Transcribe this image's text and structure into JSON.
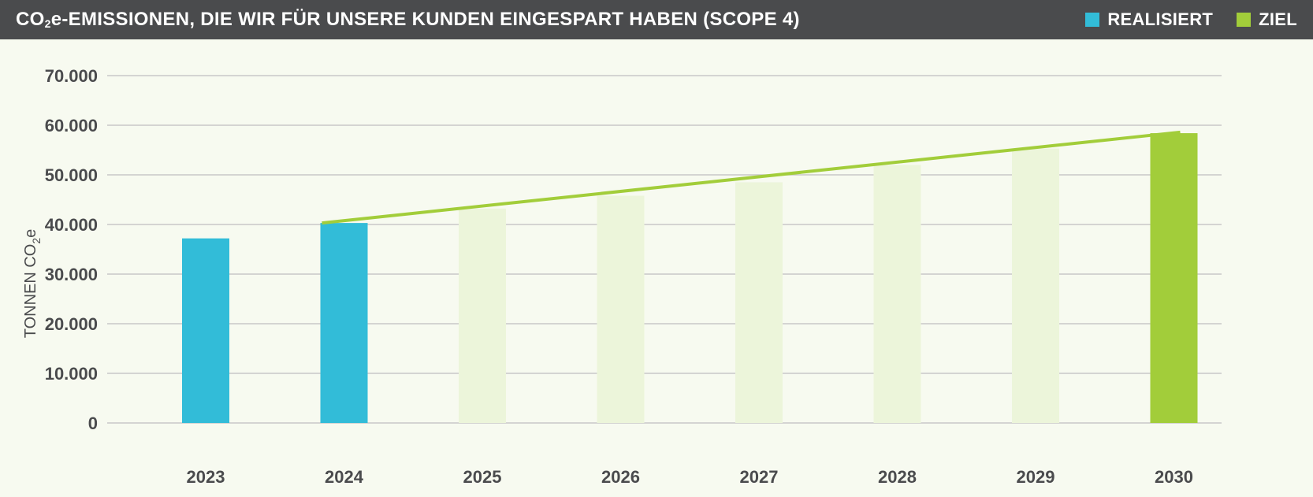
{
  "header": {
    "title_prefix": "CO",
    "title_sub": "2",
    "title_rest": "e-EMISSIONEN, DIE WIR FÜR UNSERE KUNDEN EINGESPART HABEN (SCOPE 4)",
    "background": "#4a4b4d"
  },
  "legend": [
    {
      "label": "REALISIERT",
      "color": "#32bcd8"
    },
    {
      "label": "ZIEL",
      "color": "#a2cd3a"
    }
  ],
  "colors": {
    "realized": "#32bcd8",
    "target": "#a2cd3a",
    "projection": "#ecf5da",
    "grid": "#c8c8c8",
    "background": "#f7faf0"
  },
  "chart_data": {
    "type": "bar",
    "ylabel_main": "TONNEN CO",
    "ylabel_sub": "2",
    "ylabel_suffix": "e",
    "ylim": [
      0,
      70000
    ],
    "yticks": [
      0,
      10000,
      20000,
      30000,
      40000,
      50000,
      60000,
      70000
    ],
    "ytick_labels": [
      "0",
      "10.000",
      "20.000",
      "30.000",
      "40.000",
      "50.000",
      "60.000",
      "70.000"
    ],
    "grid": true,
    "legend_position": "top-right",
    "categories": [
      "2023",
      "2024",
      "2025",
      "2026",
      "2027",
      "2028",
      "2029",
      "2030"
    ],
    "series": [
      {
        "name": "REALISIERT",
        "values": [
          37200,
          40300,
          null,
          null,
          null,
          null,
          null,
          null
        ]
      },
      {
        "values": [
          null,
          null,
          43200,
          45800,
          48500,
          52000,
          55300,
          null
        ]
      },
      {
        "name": "ZIEL",
        "values": [
          null,
          null,
          null,
          null,
          null,
          null,
          null,
          58400
        ]
      }
    ],
    "trend_line": {
      "x": [
        "2024",
        "2030"
      ],
      "y": [
        40300,
        58600
      ]
    }
  }
}
